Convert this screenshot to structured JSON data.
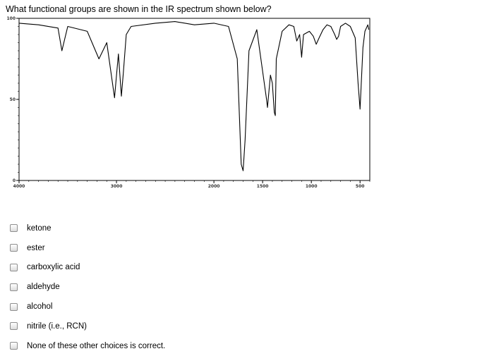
{
  "question": "What functional groups are shown in the IR spectrum shown below?",
  "spectrum": {
    "y_ticks": [
      {
        "label": "100",
        "value": 100
      },
      {
        "label": "50",
        "value": 50
      },
      {
        "label": "0",
        "value": 0
      }
    ],
    "x_ticks": [
      {
        "label": "4000",
        "value": 4000
      },
      {
        "label": "3000",
        "value": 3000
      },
      {
        "label": "2000",
        "value": 2000
      },
      {
        "label": "1500",
        "value": 1500
      },
      {
        "label": "1000",
        "value": 1000
      },
      {
        "label": "500",
        "value": 500
      }
    ]
  },
  "chart_data": {
    "type": "line",
    "x": [
      4000,
      3800,
      3600,
      3560,
      3500,
      3300,
      3180,
      3100,
      3060,
      3020,
      3000,
      2980,
      2950,
      2930,
      2900,
      2850,
      2600,
      2400,
      2200,
      2000,
      1850,
      1760,
      1720,
      1700,
      1680,
      1640,
      1560,
      1460,
      1450,
      1420,
      1400,
      1380,
      1370,
      1360,
      1300,
      1230,
      1180,
      1150,
      1120,
      1100,
      1080,
      1020,
      980,
      950,
      920,
      880,
      840,
      800,
      760,
      740,
      720,
      700,
      650,
      600,
      550,
      520,
      500,
      470,
      450,
      420,
      410
    ],
    "series": [
      {
        "values": [
          97,
          96,
          94,
          80,
          95,
          92,
          75,
          85,
          68,
          51,
          65,
          78,
          52,
          66,
          90,
          95,
          97,
          98,
          96,
          97,
          95,
          75,
          10,
          6,
          25,
          80,
          93,
          50,
          45,
          65,
          60,
          42,
          40,
          75,
          92,
          96,
          95,
          86,
          90,
          76,
          90,
          92,
          89,
          84,
          88,
          93,
          96,
          95,
          90,
          87,
          89,
          95,
          97,
          95,
          88,
          60,
          44,
          82,
          92,
          96,
          93
        ]
      }
    ],
    "xlim": [
      4000,
      400
    ],
    "ylim": [
      0,
      100
    ],
    "grid": false
  },
  "options": [
    {
      "label": "ketone"
    },
    {
      "label": "ester"
    },
    {
      "label": "carboxylic acid"
    },
    {
      "label": "aldehyde"
    },
    {
      "label": "alcohol"
    },
    {
      "label": "nitrile (i.e., RCN)"
    },
    {
      "label": "None of these other choices is correct."
    }
  ]
}
